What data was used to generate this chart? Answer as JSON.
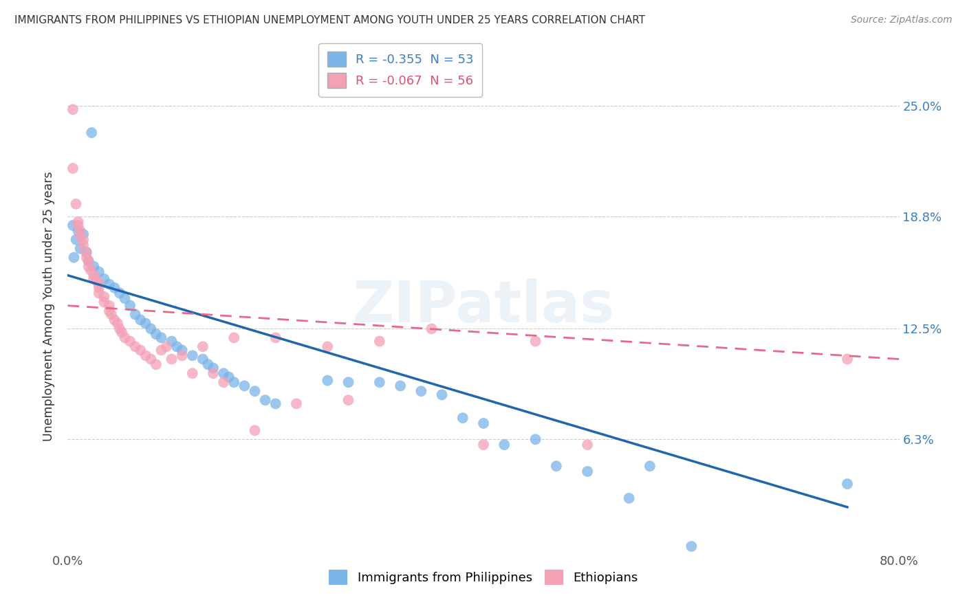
{
  "title": "IMMIGRANTS FROM PHILIPPINES VS ETHIOPIAN UNEMPLOYMENT AMONG YOUTH UNDER 25 YEARS CORRELATION CHART",
  "source": "Source: ZipAtlas.com",
  "ylabel": "Unemployment Among Youth under 25 years",
  "ytick_labels": [
    "25.0%",
    "18.8%",
    "12.5%",
    "6.3%"
  ],
  "ytick_values": [
    0.25,
    0.188,
    0.125,
    0.063
  ],
  "xlim": [
    0.0,
    0.8
  ],
  "ylim": [
    0.0,
    0.275
  ],
  "legend_entries": [
    {
      "label": "R = -0.355  N = 53",
      "color": "#7ab4e8"
    },
    {
      "label": "R = -0.067  N = 56",
      "color": "#f4a0b5"
    }
  ],
  "legend_labels": [
    "Immigrants from Philippines",
    "Ethiopians"
  ],
  "watermark": "ZIPatlas",
  "philippines_color": "#7ab4e8",
  "ethiopians_color": "#f4a0b5",
  "phil_line_color": "#2166ac",
  "eth_line_color": "#e8688a",
  "philippines_scatter": [
    [
      0.023,
      0.235
    ],
    [
      0.005,
      0.183
    ],
    [
      0.01,
      0.18
    ],
    [
      0.015,
      0.178
    ],
    [
      0.008,
      0.175
    ],
    [
      0.012,
      0.17
    ],
    [
      0.018,
      0.168
    ],
    [
      0.006,
      0.165
    ],
    [
      0.02,
      0.163
    ],
    [
      0.025,
      0.16
    ],
    [
      0.03,
      0.157
    ],
    [
      0.035,
      0.153
    ],
    [
      0.04,
      0.15
    ],
    [
      0.045,
      0.148
    ],
    [
      0.05,
      0.145
    ],
    [
      0.055,
      0.142
    ],
    [
      0.06,
      0.138
    ],
    [
      0.065,
      0.133
    ],
    [
      0.07,
      0.13
    ],
    [
      0.075,
      0.128
    ],
    [
      0.08,
      0.125
    ],
    [
      0.085,
      0.122
    ],
    [
      0.09,
      0.12
    ],
    [
      0.1,
      0.118
    ],
    [
      0.105,
      0.115
    ],
    [
      0.11,
      0.113
    ],
    [
      0.12,
      0.11
    ],
    [
      0.13,
      0.108
    ],
    [
      0.135,
      0.105
    ],
    [
      0.14,
      0.103
    ],
    [
      0.15,
      0.1
    ],
    [
      0.155,
      0.098
    ],
    [
      0.16,
      0.095
    ],
    [
      0.17,
      0.093
    ],
    [
      0.18,
      0.09
    ],
    [
      0.19,
      0.085
    ],
    [
      0.2,
      0.083
    ],
    [
      0.25,
      0.096
    ],
    [
      0.27,
      0.095
    ],
    [
      0.3,
      0.095
    ],
    [
      0.32,
      0.093
    ],
    [
      0.34,
      0.09
    ],
    [
      0.36,
      0.088
    ],
    [
      0.38,
      0.075
    ],
    [
      0.4,
      0.072
    ],
    [
      0.42,
      0.06
    ],
    [
      0.45,
      0.063
    ],
    [
      0.47,
      0.048
    ],
    [
      0.5,
      0.045
    ],
    [
      0.54,
      0.03
    ],
    [
      0.56,
      0.048
    ],
    [
      0.6,
      0.003
    ],
    [
      0.75,
      0.038
    ]
  ],
  "ethiopians_scatter": [
    [
      0.005,
      0.248
    ],
    [
      0.005,
      0.215
    ],
    [
      0.008,
      0.195
    ],
    [
      0.01,
      0.185
    ],
    [
      0.01,
      0.183
    ],
    [
      0.012,
      0.18
    ],
    [
      0.012,
      0.177
    ],
    [
      0.015,
      0.175
    ],
    [
      0.015,
      0.172
    ],
    [
      0.018,
      0.168
    ],
    [
      0.018,
      0.165
    ],
    [
      0.02,
      0.163
    ],
    [
      0.02,
      0.16
    ],
    [
      0.022,
      0.158
    ],
    [
      0.025,
      0.155
    ],
    [
      0.025,
      0.153
    ],
    [
      0.028,
      0.152
    ],
    [
      0.03,
      0.15
    ],
    [
      0.03,
      0.148
    ],
    [
      0.03,
      0.145
    ],
    [
      0.035,
      0.143
    ],
    [
      0.035,
      0.14
    ],
    [
      0.04,
      0.138
    ],
    [
      0.04,
      0.135
    ],
    [
      0.042,
      0.133
    ],
    [
      0.045,
      0.13
    ],
    [
      0.048,
      0.128
    ],
    [
      0.05,
      0.125
    ],
    [
      0.052,
      0.123
    ],
    [
      0.055,
      0.12
    ],
    [
      0.06,
      0.118
    ],
    [
      0.065,
      0.115
    ],
    [
      0.07,
      0.113
    ],
    [
      0.075,
      0.11
    ],
    [
      0.08,
      0.108
    ],
    [
      0.085,
      0.105
    ],
    [
      0.09,
      0.113
    ],
    [
      0.095,
      0.115
    ],
    [
      0.1,
      0.108
    ],
    [
      0.11,
      0.11
    ],
    [
      0.12,
      0.1
    ],
    [
      0.13,
      0.115
    ],
    [
      0.14,
      0.1
    ],
    [
      0.15,
      0.095
    ],
    [
      0.16,
      0.12
    ],
    [
      0.18,
      0.068
    ],
    [
      0.2,
      0.12
    ],
    [
      0.22,
      0.083
    ],
    [
      0.25,
      0.115
    ],
    [
      0.27,
      0.085
    ],
    [
      0.3,
      0.118
    ],
    [
      0.35,
      0.125
    ],
    [
      0.4,
      0.06
    ],
    [
      0.45,
      0.118
    ],
    [
      0.75,
      0.108
    ],
    [
      0.5,
      0.06
    ]
  ]
}
